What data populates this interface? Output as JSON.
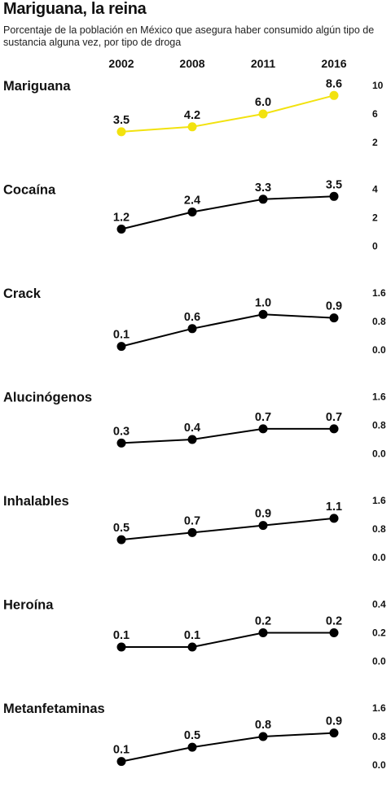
{
  "title": "Mariguana, la reina",
  "subtitle": "Porcentaje de la población en México que asegura haber consumido algún tipo de sustancia alguna vez, por tipo de droga",
  "years": [
    "2002",
    "2008",
    "2011",
    "2016"
  ],
  "chart_data": {
    "type": "line",
    "categories": [
      "2002",
      "2008",
      "2011",
      "2016"
    ],
    "panels": [
      {
        "name": "Mariguana",
        "values": [
          3.5,
          4.2,
          6.0,
          8.6
        ],
        "labels": [
          "3.5",
          "4.2",
          "6.0",
          "8.6"
        ],
        "ylim": [
          2,
          10
        ],
        "ticks": [
          "10",
          "6",
          "2"
        ],
        "color": "#f2e20f"
      },
      {
        "name": "Cocaína",
        "values": [
          1.2,
          2.4,
          3.3,
          3.5
        ],
        "labels": [
          "1.2",
          "2.4",
          "3.3",
          "3.5"
        ],
        "ylim": [
          0,
          4
        ],
        "ticks": [
          "4",
          "2",
          "0"
        ],
        "color": "#000000"
      },
      {
        "name": "Crack",
        "values": [
          0.1,
          0.6,
          1.0,
          0.9
        ],
        "labels": [
          "0.1",
          "0.6",
          "1.0",
          "0.9"
        ],
        "ylim": [
          0,
          1.6
        ],
        "ticks": [
          "1.6",
          "0.8",
          "0.0"
        ],
        "color": "#000000"
      },
      {
        "name": "Alucinógenos",
        "values": [
          0.3,
          0.4,
          0.7,
          0.7
        ],
        "labels": [
          "0.3",
          "0.4",
          "0.7",
          "0.7"
        ],
        "ylim": [
          0,
          1.6
        ],
        "ticks": [
          "1.6",
          "0.8",
          "0.0"
        ],
        "color": "#000000"
      },
      {
        "name": "Inhalables",
        "values": [
          0.5,
          0.7,
          0.9,
          1.1
        ],
        "labels": [
          "0.5",
          "0.7",
          "0.9",
          "1.1"
        ],
        "ylim": [
          0,
          1.6
        ],
        "ticks": [
          "1.6",
          "0.8",
          "0.0"
        ],
        "color": "#000000"
      },
      {
        "name": "Heroína",
        "values": [
          0.1,
          0.1,
          0.2,
          0.2
        ],
        "labels": [
          "0.1",
          "0.1",
          "0.2",
          "0.2"
        ],
        "ylim": [
          0,
          0.4
        ],
        "ticks": [
          "0.4",
          "0.2",
          "0.0"
        ],
        "color": "#000000"
      },
      {
        "name": "Metanfetaminas",
        "values": [
          0.1,
          0.5,
          0.8,
          0.9
        ],
        "labels": [
          "0.1",
          "0.5",
          "0.8",
          "0.9"
        ],
        "ylim": [
          0,
          1.6
        ],
        "ticks": [
          "1.6",
          "0.8",
          "0.0"
        ],
        "color": "#000000"
      }
    ],
    "grid": false
  }
}
